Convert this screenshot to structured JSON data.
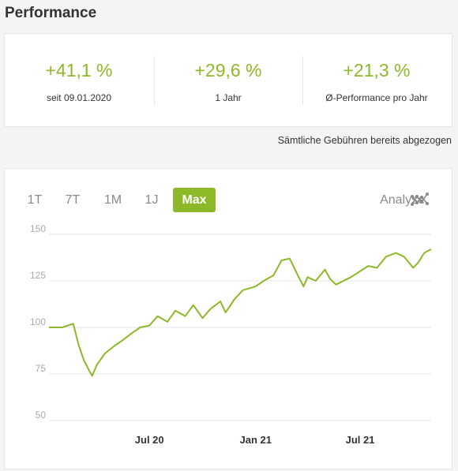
{
  "heading": "Performance",
  "stats": [
    {
      "value": "+41,1 %",
      "label": "seit 09.01.2020"
    },
    {
      "value": "+29,6 %",
      "label": "1 Jahr"
    },
    {
      "value": "+21,3 %",
      "label": "Ø-Performance pro Jahr"
    }
  ],
  "fees_note": "Sämtliche Gebühren bereits abgezogen",
  "tabs": [
    {
      "label": "1T",
      "active": false
    },
    {
      "label": "7T",
      "active": false
    },
    {
      "label": "1M",
      "active": false
    },
    {
      "label": "1J",
      "active": false
    },
    {
      "label": "Max",
      "active": true
    }
  ],
  "analyse_label": "Analyse",
  "analyse_icon": "scatter-chart-icon",
  "colors": {
    "accent": "#8db828",
    "grid": "#e6e6e6",
    "text_muted": "#8a8a8a"
  },
  "chart_data": {
    "type": "line",
    "title": "",
    "xlabel": "",
    "ylabel": "",
    "ylim": [
      50,
      150
    ],
    "yticks": [
      "50",
      "75",
      "100",
      "125",
      "150"
    ],
    "xticks": [
      "Jul 20",
      "Jan 21",
      "Jul 21"
    ],
    "grid": true,
    "series": [
      {
        "x": [
          "2020-01-09",
          "2020-02-01",
          "2020-02-20",
          "2020-03-01",
          "2020-03-10",
          "2020-03-20",
          "2020-03-24",
          "2020-04-01",
          "2020-04-15",
          "2020-05-01",
          "2020-05-15",
          "2020-06-01",
          "2020-06-15",
          "2020-07-01",
          "2020-07-15",
          "2020-08-01",
          "2020-08-15",
          "2020-09-01",
          "2020-09-15",
          "2020-10-01",
          "2020-10-15",
          "2020-11-01",
          "2020-11-10",
          "2020-11-25",
          "2020-12-10",
          "2021-01-01",
          "2021-01-15",
          "2021-02-01",
          "2021-02-15",
          "2021-03-01",
          "2021-03-15",
          "2021-03-25",
          "2021-04-01",
          "2021-04-15",
          "2021-05-01",
          "2021-05-10",
          "2021-05-20",
          "2021-06-15",
          "2021-07-15",
          "2021-07-30",
          "2021-08-15",
          "2021-09-01",
          "2021-09-15",
          "2021-10-01",
          "2021-10-10",
          "2021-10-20",
          "2021-11-01"
        ],
        "y": [
          100,
          100,
          102,
          90,
          82,
          76,
          74,
          80,
          86,
          90,
          93,
          97,
          100,
          101,
          106,
          103,
          109,
          106,
          112,
          105,
          110,
          114,
          108,
          115,
          120,
          122,
          125,
          128,
          136,
          137,
          128,
          122,
          127,
          125,
          131,
          126,
          123,
          127,
          133,
          132,
          138,
          140,
          138,
          132,
          135,
          140,
          142
        ]
      }
    ]
  }
}
